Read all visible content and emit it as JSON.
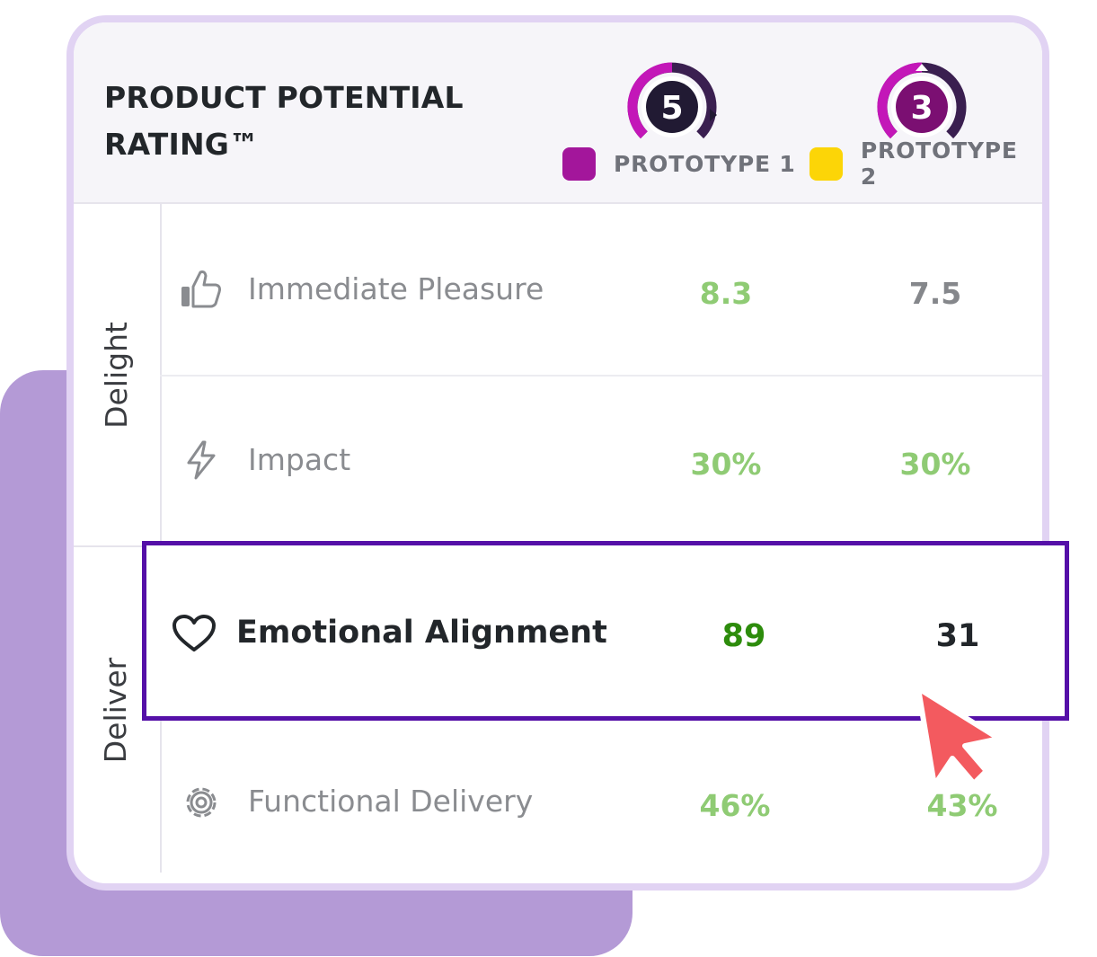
{
  "header": {
    "title": "PRODUCT POTENTIAL RATING™"
  },
  "prototypes": [
    {
      "name": "PROTOTYPE 1",
      "score": "5",
      "color": "#a3169b"
    },
    {
      "name": "PROTOTYPE 2",
      "score": "3",
      "color": "#fcd507"
    }
  ],
  "groups": [
    {
      "label": "Delight"
    },
    {
      "label": "Deliver"
    }
  ],
  "metrics": [
    {
      "label": "Immediate Pleasure",
      "icon": "thumbs-up-icon",
      "p1": "8.3",
      "p2": "7.5",
      "p1_color": "#8fcb74",
      "p2_color": "#85878b"
    },
    {
      "label": "Impact",
      "icon": "lightning-icon",
      "p1": "30%",
      "p2": "30%",
      "p1_color": "#8fcb74",
      "p2_color": "#8fcb74"
    },
    {
      "label": "Emotional Alignment",
      "icon": "heart-icon",
      "p1": "89",
      "p2": "31",
      "p1_color": "#2d8c0c",
      "p2_color": "#22262a"
    },
    {
      "label": "Functional Delivery",
      "icon": "gear-icon",
      "p1": "46%",
      "p2": "43%",
      "p1_color": "#8fcb74",
      "p2_color": "#8fcb74"
    }
  ],
  "colors": {
    "accent_border": "#5510a8",
    "cursor": "#f35a5f",
    "backdrop": "#b49ad6"
  }
}
